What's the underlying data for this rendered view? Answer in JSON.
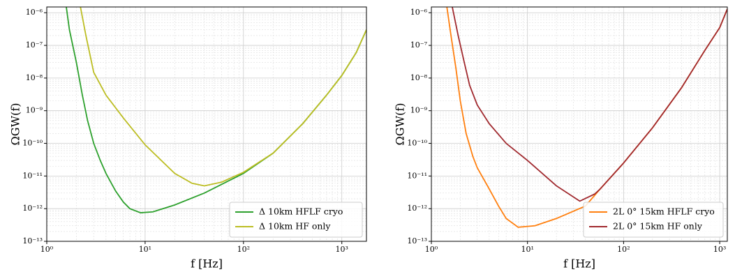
{
  "chart_data": [
    {
      "type": "line",
      "xlabel": "f [Hz]",
      "ylabel": "ΩGW(f)",
      "xscale": "log",
      "yscale": "log",
      "grid": true,
      "legend": "lower right",
      "xlim": [
        1,
        1780
      ],
      "ylim": [
        1e-13,
        1.5e-06
      ],
      "xticks": [
        {
          "value": 1,
          "label": "10⁰"
        },
        {
          "value": 10,
          "label": "10¹"
        },
        {
          "value": 100,
          "label": "10²"
        },
        {
          "value": 1000,
          "label": "10³"
        }
      ],
      "yticks": [
        {
          "value": 1e-13,
          "label": "10⁻¹³"
        },
        {
          "value": 1e-12,
          "label": "10⁻¹²"
        },
        {
          "value": 1e-11,
          "label": "10⁻¹¹"
        },
        {
          "value": 1e-10,
          "label": "10⁻¹⁰"
        },
        {
          "value": 1e-09,
          "label": "10⁻⁹"
        },
        {
          "value": 1e-08,
          "label": "10⁻⁸"
        },
        {
          "value": 1e-07,
          "label": "10⁻⁷"
        },
        {
          "value": 1e-06,
          "label": "10⁻⁶"
        }
      ],
      "series": [
        {
          "name": "Δ 10km HFLF cryo",
          "color": "#2ca02c",
          "x": [
            1.58,
            1.7,
            2.0,
            2.3,
            2.6,
            3,
            3.5,
            4,
            5,
            6,
            7,
            9,
            12,
            20,
            40,
            70,
            100,
            200,
            400,
            700,
            1000,
            1400,
            1780
          ],
          "values": [
            1.5e-06,
            3e-07,
            3e-08,
            3e-09,
            5e-10,
            1e-10,
            3e-11,
            1.2e-11,
            3.5e-12,
            1.6e-12,
            1e-12,
            7.5e-13,
            8e-13,
            1.3e-12,
            3e-12,
            7e-12,
            1.2e-11,
            5e-11,
            4e-10,
            3e-09,
            1.2e-08,
            6e-08,
            3e-07
          ]
        },
        {
          "name": "Δ 10km HF only",
          "color": "#bcbd22",
          "x": [
            2.2,
            2.5,
            3,
            4,
            6,
            10,
            20,
            30,
            40,
            60,
            100,
            200,
            400,
            700,
            1000,
            1400,
            1780
          ],
          "values": [
            1.5e-06,
            2e-07,
            1.5e-08,
            3e-09,
            6e-10,
            9e-11,
            1.2e-11,
            6e-12,
            5e-12,
            6.5e-12,
            1.3e-11,
            5e-11,
            4e-10,
            3e-09,
            1.2e-08,
            6e-08,
            3e-07
          ]
        }
      ]
    },
    {
      "type": "line",
      "xlabel": "f [Hz]",
      "ylabel": "ΩGW(f)",
      "xscale": "log",
      "yscale": "log",
      "grid": true,
      "legend": "lower right",
      "xlim": [
        1,
        1200
      ],
      "ylim": [
        1e-13,
        1.5e-06
      ],
      "xticks": [
        {
          "value": 1,
          "label": "10⁰"
        },
        {
          "value": 10,
          "label": "10¹"
        },
        {
          "value": 100,
          "label": "10²"
        },
        {
          "value": 1000,
          "label": "10³"
        }
      ],
      "yticks": [
        {
          "value": 1e-13,
          "label": "10⁻¹³"
        },
        {
          "value": 1e-12,
          "label": "10⁻¹²"
        },
        {
          "value": 1e-11,
          "label": "10⁻¹¹"
        },
        {
          "value": 1e-10,
          "label": "10⁻¹⁰"
        },
        {
          "value": 1e-09,
          "label": "10⁻⁹"
        },
        {
          "value": 1e-08,
          "label": "10⁻⁸"
        },
        {
          "value": 1e-07,
          "label": "10⁻⁷"
        },
        {
          "value": 1e-06,
          "label": "10⁻⁶"
        }
      ],
      "series": [
        {
          "name": "2L 0° 15km HFLF cryo",
          "color": "#ff7f0e",
          "x": [
            1.45,
            1.6,
            1.8,
            2,
            2.3,
            2.7,
            3,
            4,
            5,
            6,
            8,
            12,
            20,
            40,
            57,
            100,
            200,
            400,
            700,
            1000,
            1200
          ],
          "values": [
            1.5e-06,
            2e-07,
            2e-08,
            2e-09,
            2e-10,
            4e-11,
            1.8e-11,
            4e-12,
            1.2e-12,
            5e-13,
            2.7e-13,
            3e-13,
            5e-13,
            1.2e-12,
            4e-12,
            2.5e-11,
            3e-10,
            5e-09,
            7e-08,
            3.5e-07,
            1.3e-06
          ]
        },
        {
          "name": "2L 0° 15km HF only",
          "color": "#a0282d",
          "x": [
            1.65,
            1.9,
            2.2,
            2.5,
            3,
            4,
            6,
            10,
            20,
            35,
            50,
            57,
            100,
            200,
            400,
            700,
            1000,
            1200
          ],
          "values": [
            1.5e-06,
            2e-07,
            3e-08,
            6e-09,
            1.5e-09,
            4e-10,
            1e-10,
            3e-11,
            5e-12,
            1.7e-12,
            2.8e-12,
            4e-12,
            2.5e-11,
            3e-10,
            5e-09,
            7e-08,
            3.5e-07,
            1.3e-06
          ]
        }
      ]
    }
  ]
}
